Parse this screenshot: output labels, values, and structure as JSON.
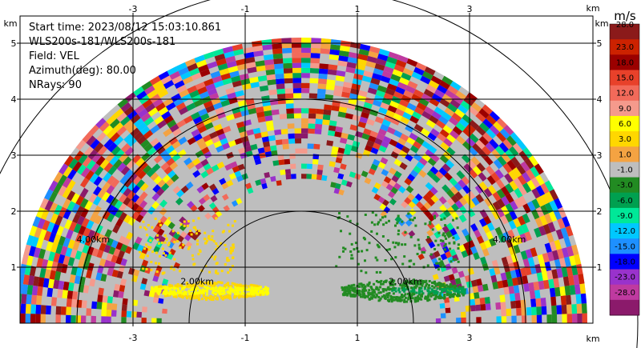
{
  "info_text": {
    "start_time": "Start time: 2023/08/12 15:03:10.861",
    "instrument": "WLS200s-181/WLS200s-181",
    "field": "Field: VEL",
    "azimuth": "Azimuth(deg): 80.00",
    "nrays": "NRays: 90"
  },
  "chart_data": {
    "type": "heatmap",
    "subtype": "radar-rhi-sweep",
    "x_axis": {
      "unit_label": "km",
      "range": [
        -5.6,
        5.2
      ],
      "ticks": [
        -3,
        -1,
        1,
        3
      ],
      "tick_labels": [
        "-3",
        "-1",
        "1",
        "3"
      ]
    },
    "y_axis": {
      "unit_label": "km",
      "range": [
        0,
        5.95
      ],
      "ticks": [
        1,
        2,
        3,
        4,
        5
      ],
      "tick_labels": [
        "1",
        "2",
        "3",
        "4",
        "5"
      ]
    },
    "grid": true,
    "max_range_km": 5.1,
    "background_velocity": 0.0,
    "range_rings": [
      {
        "radius_km": 2.0,
        "label": "2.00km"
      },
      {
        "radius_km": 4.0,
        "label": "4.00km"
      },
      {
        "radius_km": 6.0,
        "label": ""
      }
    ],
    "features": [
      {
        "shape": "jet",
        "x": [
          -2.7,
          -0.6
        ],
        "y_center": 0.6,
        "thickness": 0.32,
        "velocity": 6.0,
        "edge_velocity": 3.0
      },
      {
        "shape": "jet",
        "x": [
          0.7,
          2.9
        ],
        "y_center": 0.6,
        "thickness": 0.4,
        "velocity": -3.0,
        "core_velocity": -6.0
      },
      {
        "shape": "cloud",
        "x": [
          -2.9,
          -1.2
        ],
        "y": [
          0.9,
          1.9
        ],
        "velocity": 3.0
      },
      {
        "shape": "cloud",
        "x": [
          0.6,
          2.8
        ],
        "y": [
          0.9,
          2.0
        ],
        "velocity": -3.0
      }
    ],
    "noise_zone": {
      "r_min_km": 2.4,
      "r_max_km": 5.1
    },
    "colorbar": {
      "unit": "m/s",
      "levels": [
        "28.0",
        "23.0",
        "18.0",
        "15.0",
        "12.0",
        "9.0",
        "6.0",
        "3.0",
        "1.0",
        "-1.0",
        "-3.0",
        "-6.0",
        "-9.0",
        "-12.0",
        "-15.0",
        "-18.0",
        "-23.0",
        "-28.0"
      ],
      "colors": [
        "#8b1a1a",
        "#cc2200",
        "#9b0000",
        "#e8412a",
        "#f26a5a",
        "#f59a8c",
        "#ffff00",
        "#ffd700",
        "#f4a342",
        "#bebebe",
        "#228b22",
        "#00a050",
        "#00e898",
        "#00c8ff",
        "#1e90ff",
        "#0000ff",
        "#9932cc",
        "#bf3aa0",
        "#8b1a6b"
      ]
    }
  }
}
